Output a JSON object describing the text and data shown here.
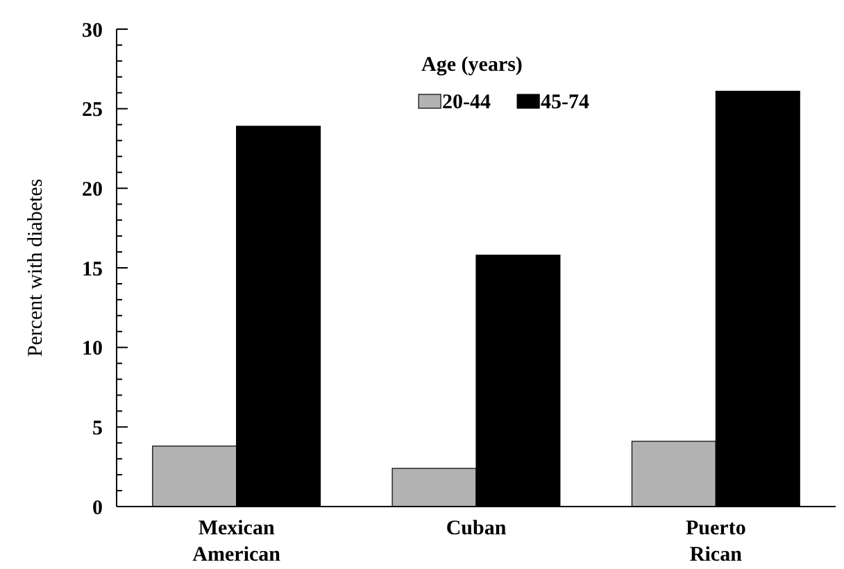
{
  "chart_data": {
    "type": "bar",
    "ylabel": "Percent with diabetes",
    "legend_title": "Age (years)",
    "legend": "top",
    "categories": [
      "Mexican American",
      "Cuban",
      "Puerto Rican"
    ],
    "series": [
      {
        "name": "20-44",
        "color": "#b3b3b3",
        "values": [
          3.8,
          2.4,
          4.1
        ]
      },
      {
        "name": "45-74",
        "color": "#000000",
        "values": [
          23.9,
          15.8,
          26.1
        ]
      }
    ],
    "ylim": [
      0,
      30
    ],
    "yticks": [
      0,
      {
        "value": 1,
        "label": null
      },
      {
        "value": 2,
        "label": null
      },
      {
        "value": 3,
        "label": null
      },
      {
        "value": 4,
        "label": null
      },
      5,
      {
        "value": 6,
        "label": null
      },
      {
        "value": 7,
        "label": null
      },
      {
        "value": 8,
        "label": null
      },
      {
        "value": 9,
        "label": null
      },
      10,
      {
        "value": 11,
        "label": null
      },
      {
        "value": 12,
        "label": null
      },
      {
        "value": 13,
        "label": null
      },
      {
        "value": 14,
        "label": null
      },
      15,
      {
        "value": 16,
        "label": null
      },
      {
        "value": 17,
        "label": null
      },
      {
        "value": 18,
        "label": null
      },
      {
        "value": 19,
        "label": null
      },
      20,
      {
        "value": 21,
        "label": null
      },
      {
        "value": 22,
        "label": null
      },
      {
        "value": 23,
        "label": null
      },
      {
        "value": 24,
        "label": null
      },
      25,
      {
        "value": 26,
        "label": null
      },
      {
        "value": 27,
        "label": null
      },
      {
        "value": 28,
        "label": null
      },
      {
        "value": 29,
        "label": null
      },
      30
    ]
  }
}
